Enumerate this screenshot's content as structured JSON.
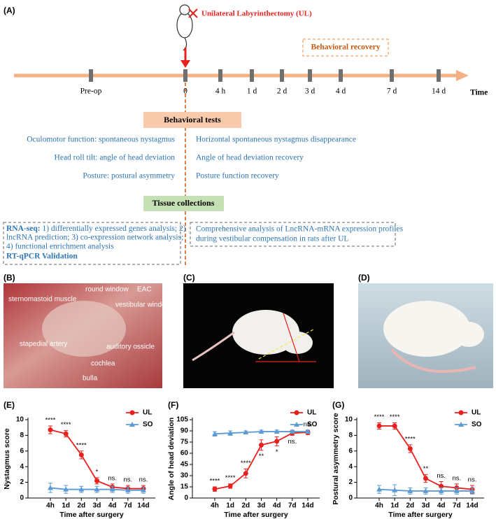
{
  "panel_a": {
    "label": "(A)",
    "procedure": "Unilateral Labyrinthectomy (UL)",
    "recovery": "Behavioral recovery",
    "timeline": [
      "Pre-op",
      "0",
      "4 h",
      "1 d",
      "2 d",
      "3 d",
      "4 d",
      "7 d",
      "14 d"
    ],
    "time_label": "Time",
    "tests_title": "Behavioral tests",
    "tests_left": [
      "Oculomotor function: spontaneous nystagmus",
      "Head roll tilt: angle of head deviation",
      "Posture: postural asymmetry"
    ],
    "tests_right": [
      "Horizontal spontaneous nystagmus disappearance",
      "Angle of head deviation recovery",
      "Posture function recovery"
    ],
    "tissue_title": "Tissue collections",
    "rnaseq_head": "RNA-seq:",
    "rnaseq_lines": [
      " 1) differentially expressed genes analysis; 2)",
      "lncRNA prediction; 3) co-expression network analysis;",
      "4) functional enrichment analysis"
    ],
    "rtqpcr": "RT-qPCR Validation",
    "analysis_lines": [
      "Comprehensive analysis of LncRNA-mRNA expression profiles",
      "during vestibular compensation in rats after UL"
    ]
  },
  "panel_b": {
    "label": "(B)",
    "labels": [
      "sternomastoid muscle",
      "round window",
      "EAC",
      "vestibular window",
      "stapedial artery",
      "auditory ossicle",
      "cochlea",
      "bulla"
    ]
  },
  "panel_c": {
    "label": "(C)"
  },
  "panel_d": {
    "label": "(D)"
  },
  "chart_data": [
    {
      "type": "line",
      "panel_label": "(E)",
      "y_label": "Nystagmus score",
      "x_label": "Time after surgery",
      "categories": [
        "4h",
        "1d",
        "2d",
        "3d",
        "4d",
        "7d",
        "14d"
      ],
      "ylim": [
        0,
        10
      ],
      "yticks": [
        0,
        2,
        4,
        6,
        8,
        10
      ],
      "series": [
        {
          "name": "UL",
          "color": "#e8211f",
          "marker": "circle",
          "values": [
            8.7,
            8.2,
            5.5,
            2.2,
            1.4,
            1.2,
            1.2
          ],
          "errors": [
            0.5,
            0.4,
            0.5,
            0.4,
            0.4,
            0.4,
            0.4
          ]
        },
        {
          "name": "SO",
          "color": "#5b9bd5",
          "marker": "triangle",
          "values": [
            1.3,
            1.1,
            1.1,
            1.1,
            1.1,
            1.0,
            1.0
          ],
          "errors": [
            0.6,
            0.5,
            0.4,
            0.4,
            0.4,
            0.4,
            0.4
          ]
        }
      ],
      "annotations": [
        "****",
        "****",
        "****",
        "*",
        "ns.",
        "ns.",
        "ns."
      ]
    },
    {
      "type": "line",
      "panel_label": "(F)",
      "y_label": "Angle of head deviation",
      "x_label": "Time after surgery",
      "categories": [
        "4h",
        "1d",
        "2d",
        "3d",
        "4d",
        "7d",
        "14d"
      ],
      "ylim": [
        0,
        105
      ],
      "yticks": [
        0,
        15,
        30,
        45,
        60,
        75,
        90,
        105
      ],
      "series": [
        {
          "name": "UL",
          "color": "#e8211f",
          "marker": "circle",
          "values": [
            12,
            16,
            33,
            71,
            76,
            87,
            88
          ],
          "errors": [
            3,
            3,
            6,
            7,
            6,
            3,
            3
          ]
        },
        {
          "name": "SO",
          "color": "#5b9bd5",
          "marker": "triangle",
          "values": [
            86,
            87,
            88,
            89,
            89,
            89,
            89
          ],
          "errors": [
            3,
            3,
            2,
            2,
            2,
            2,
            2
          ]
        }
      ],
      "annotations": [
        "****",
        "****",
        "****",
        "**",
        "*",
        "ns.",
        "ns."
      ]
    },
    {
      "type": "line",
      "panel_label": "(G)",
      "y_label": "Postural asymmetry score",
      "x_label": "Time after surgery",
      "categories": [
        "4h",
        "1d",
        "2d",
        "3d",
        "4d",
        "7d",
        "14d"
      ],
      "ylim": [
        0,
        10
      ],
      "yticks": [
        0,
        2,
        4,
        6,
        8,
        10
      ],
      "series": [
        {
          "name": "UL",
          "color": "#e8211f",
          "marker": "circle",
          "values": [
            9.2,
            9.2,
            6.3,
            2.5,
            1.5,
            1.3,
            1.1
          ],
          "errors": [
            0.4,
            0.4,
            0.5,
            0.5,
            0.6,
            0.5,
            0.5
          ]
        },
        {
          "name": "SO",
          "color": "#5b9bd5",
          "marker": "triangle",
          "values": [
            1.1,
            1.0,
            0.9,
            0.9,
            0.9,
            0.9,
            0.9
          ],
          "errors": [
            0.5,
            0.7,
            0.4,
            0.4,
            0.4,
            0.4,
            0.4
          ]
        }
      ],
      "annotations": [
        "****",
        "****",
        "****",
        "**",
        "ns.",
        "ns.",
        "ns."
      ]
    }
  ]
}
